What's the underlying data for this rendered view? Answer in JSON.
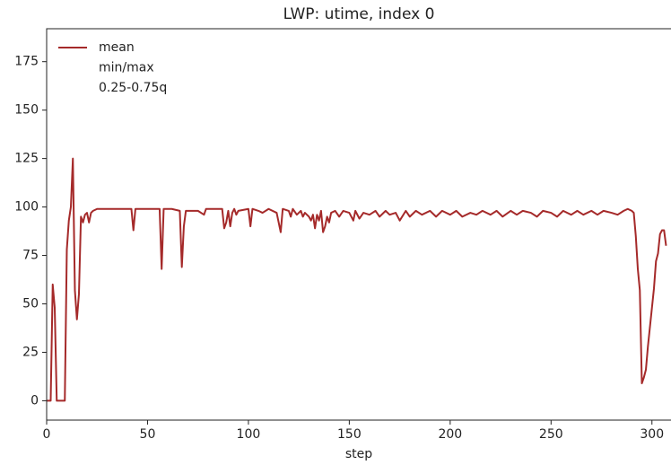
{
  "chart_data": {
    "type": "line",
    "title": "LWP: utime, index 0",
    "x_label": "step",
    "x": [
      0,
      1,
      2,
      3,
      4,
      5,
      6,
      7,
      8,
      9,
      10,
      11,
      12,
      13,
      14,
      15,
      16,
      17,
      18,
      19,
      20,
      21,
      22,
      23,
      25,
      30,
      35,
      40,
      42,
      43,
      44,
      50,
      56,
      57,
      58,
      62,
      66,
      67,
      68,
      69,
      75,
      78,
      79,
      80,
      87,
      88,
      89,
      90,
      91,
      92,
      93,
      94,
      95,
      100,
      101,
      102,
      105,
      107,
      110,
      114,
      116,
      117,
      120,
      121,
      122,
      124,
      126,
      127,
      128,
      130,
      131,
      132,
      133,
      134,
      135,
      136,
      137,
      138,
      139,
      140,
      141,
      143,
      145,
      147,
      150,
      152,
      153,
      155,
      157,
      160,
      163,
      165,
      168,
      170,
      173,
      175,
      178,
      180,
      183,
      186,
      190,
      193,
      196,
      200,
      203,
      206,
      210,
      213,
      216,
      220,
      223,
      226,
      230,
      233,
      236,
      240,
      243,
      246,
      250,
      253,
      256,
      260,
      263,
      266,
      270,
      273,
      276,
      280,
      283,
      286,
      288,
      290,
      291,
      292,
      293,
      294,
      295,
      296,
      297,
      298,
      299,
      300,
      301,
      302,
      303,
      304,
      305,
      306,
      307
    ],
    "series": [
      {
        "name": "mean",
        "color": "#a52a2a",
        "values": [
          0,
          0,
          0,
          60,
          48,
          0,
          0,
          0,
          0,
          0,
          78,
          93,
          100,
          125,
          57,
          42,
          55,
          95,
          92,
          96,
          97,
          92,
          97,
          98,
          99,
          99,
          99,
          99,
          99,
          88,
          99,
          99,
          99,
          68,
          99,
          99,
          98,
          69,
          90,
          98,
          98,
          96,
          99,
          99,
          99,
          89,
          92,
          98,
          90,
          97,
          99,
          96,
          98,
          99,
          90,
          99,
          98,
          97,
          99,
          97,
          87,
          99,
          98,
          95,
          99,
          96,
          98,
          95,
          97,
          95,
          93,
          96,
          89,
          96,
          93,
          98,
          87,
          90,
          95,
          92,
          97,
          98,
          95,
          98,
          97,
          93,
          98,
          94,
          97,
          96,
          98,
          95,
          98,
          96,
          97,
          93,
          98,
          95,
          98,
          96,
          98,
          95,
          98,
          96,
          98,
          95,
          97,
          96,
          98,
          96,
          98,
          95,
          98,
          96,
          98,
          97,
          95,
          98,
          97,
          95,
          98,
          96,
          98,
          96,
          98,
          96,
          98,
          97,
          96,
          98,
          99,
          98,
          97,
          85,
          68,
          57,
          9,
          12,
          16,
          28,
          38,
          48,
          58,
          72,
          76,
          86,
          88,
          88,
          80
        ]
      }
    ],
    "legend": {
      "loc": "upper left",
      "entries": [
        "mean",
        "min/max",
        "0.25-0.75q"
      ]
    },
    "xlim": [
      0,
      309
    ],
    "xticks": [
      0,
      50,
      100,
      150,
      200,
      250,
      300
    ],
    "ylim": [
      -10,
      192
    ],
    "yticks": [
      0,
      25,
      50,
      75,
      100,
      125,
      150,
      175
    ]
  }
}
